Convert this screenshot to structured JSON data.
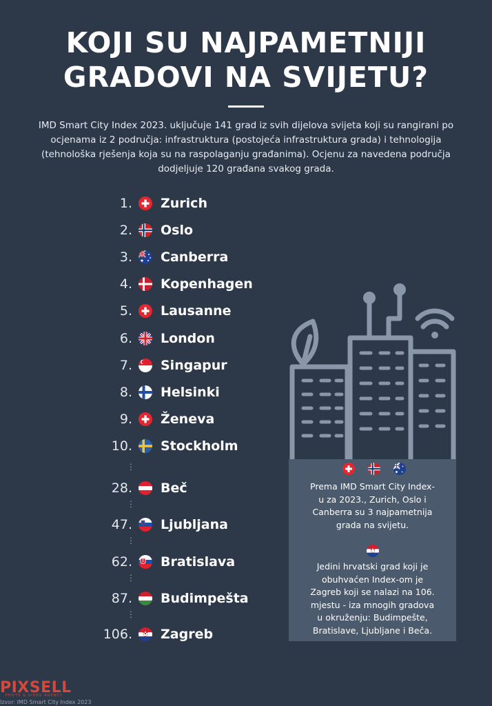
{
  "title": {
    "line1": "KOJI SU NAJPAMETNIJI",
    "line2": "GRADOVI NA SVIJETU?"
  },
  "intro": {
    "line1": "IMD Smart City Index 2023. uključuje 141 grad iz svih dijelova svijeta koji su rangirani po",
    "line2": "ocjenama iz 2 područja: infrastruktura (postojeća infrastruktura grada) i tehnologija",
    "line3": "(tehnološka rješenja koja su na raspolaganju građanima). Ocjenu za navedena područja",
    "line4": "dodjeljuje 120 građana svakog grada."
  },
  "ranking": [
    {
      "rank": "1.",
      "city": "Zurich",
      "flag": "switzerland-flag-icon"
    },
    {
      "rank": "2.",
      "city": "Oslo",
      "flag": "norway-flag-icon"
    },
    {
      "rank": "3.",
      "city": "Canberra",
      "flag": "australia-flag-icon"
    },
    {
      "rank": "4.",
      "city": "Kopenhagen",
      "flag": "denmark-flag-icon"
    },
    {
      "rank": "5.",
      "city": "Lausanne",
      "flag": "switzerland-flag-icon"
    },
    {
      "rank": "6.",
      "city": "London",
      "flag": "uk-flag-icon"
    },
    {
      "rank": "7.",
      "city": "Singapur",
      "flag": "singapore-flag-icon"
    },
    {
      "rank": "8.",
      "city": "Helsinki",
      "flag": "finland-flag-icon"
    },
    {
      "rank": "9.",
      "city": "Ženeva",
      "flag": "switzerland-flag-icon"
    },
    {
      "rank": "10.",
      "city": "Stockholm",
      "flag": "sweden-flag-icon"
    },
    {
      "rank": "28.",
      "city": "Beč",
      "flag": "austria-flag-icon"
    },
    {
      "rank": "47.",
      "city": "Ljubljana",
      "flag": "slovenia-flag-icon"
    },
    {
      "rank": "62.",
      "city": "Bratislava",
      "flag": "slovakia-flag-icon"
    },
    {
      "rank": "87.",
      "city": "Budimpešta",
      "flag": "hungary-flag-icon"
    },
    {
      "rank": "106.",
      "city": "Zagreb",
      "flag": "croatia-flag-icon"
    }
  ],
  "panel": {
    "top_lines": [
      "Prema IMD Smart City Index-",
      "u za 2023., Zurich, Oslo i",
      "Canberra su 3 najpametnija",
      "grada na svijetu."
    ],
    "bottom_lines": [
      "Jedini hrvatski grad koji je",
      "obuhvaćen Index-om je",
      "Zagreb koji se nalazi na 106.",
      "mjestu - iza mnogih gradova",
      "u okruženju: Budimpešte,",
      "Bratislave, Ljubljane i Beča."
    ]
  },
  "footer": {
    "logo": "PIXSELL",
    "logo_sub": "PHOTO & VIDEO AGENCY",
    "source": "Izvor: IMD Smart City Index 2023"
  },
  "colors": {
    "background": "#2d3849",
    "panel": "#4b5a6c",
    "illustration_stroke": "#8a97a8",
    "logo_red": "#d3493c"
  }
}
